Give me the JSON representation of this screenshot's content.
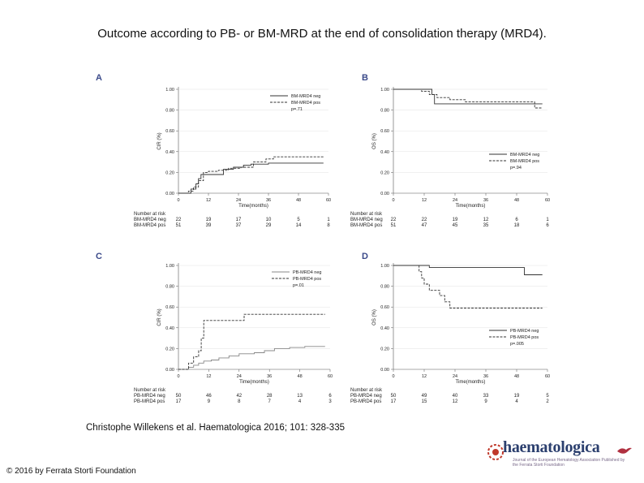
{
  "title": "Outcome according to PB- or BM-MRD at the end of consolidation therapy (MRD4).",
  "citation": "Christophe Willekens et al. Haematologica 2016; 101: 328-335",
  "copyright": "© 2016 by Ferrata Storti Foundation",
  "logo": {
    "word": "haematologica",
    "tagline": "Journal of the European Hematology Association Published by the Ferrata Storti Foundation"
  },
  "colors": {
    "solid": "#333333",
    "dashed": "#333333",
    "gray": "#888888",
    "letter": "#3b4a8a"
  },
  "chart_data": [
    {
      "panel": "A",
      "type": "line",
      "ylabel": "CIR (%)",
      "xlabel": "Time(months)",
      "xlim": [
        0,
        60
      ],
      "ylim": [
        0,
        1
      ],
      "xticks": [
        "0",
        "12",
        "24",
        "36",
        "48",
        "60"
      ],
      "yticks": [
        "0.00",
        "0.20",
        "0.40",
        "0.60",
        "0.80",
        "1.00"
      ],
      "legend": [
        "BM-MRD4 neg",
        "BM-MRD4 pos"
      ],
      "pvalue": "p=.71",
      "legend_position": "top-right",
      "series": [
        {
          "name": "BM-MRD4 neg",
          "style": "solid",
          "color": "#333333",
          "x": [
            0,
            5,
            7,
            8,
            9,
            12,
            18,
            22,
            26,
            29,
            36,
            48,
            58
          ],
          "y": [
            0,
            0.04,
            0.09,
            0.14,
            0.18,
            0.18,
            0.23,
            0.25,
            0.27,
            0.28,
            0.29,
            0.29,
            0.29
          ]
        },
        {
          "name": "BM-MRD4 pos",
          "style": "dashed",
          "color": "#333333",
          "x": [
            0,
            4,
            6,
            8,
            10,
            12,
            16,
            20,
            25,
            30,
            35,
            38,
            48,
            58
          ],
          "y": [
            0,
            0.02,
            0.06,
            0.12,
            0.2,
            0.21,
            0.22,
            0.24,
            0.25,
            0.3,
            0.33,
            0.35,
            0.35,
            0.35
          ]
        }
      ],
      "risk_table": {
        "header": "Number at risk",
        "rows": [
          {
            "label": "BM-MRD4 neg",
            "values": [
              "22",
              "19",
              "17",
              "10",
              "5",
              "1"
            ]
          },
          {
            "label": "BM-MRD4 pos",
            "values": [
              "51",
              "39",
              "37",
              "29",
              "14",
              "8"
            ]
          }
        ]
      }
    },
    {
      "panel": "B",
      "type": "line",
      "ylabel": "OS (%)",
      "xlabel": "Time(months)",
      "xlim": [
        0,
        60
      ],
      "ylim": [
        0,
        1
      ],
      "xticks": [
        "0",
        "12",
        "24",
        "36",
        "48",
        "60"
      ],
      "yticks": [
        "0.00",
        "0.20",
        "0.40",
        "0.60",
        "0.80",
        "1.00"
      ],
      "legend": [
        "BM-MRD4 neg",
        "BM-MRD4 pos"
      ],
      "pvalue": "p=.94",
      "legend_position": "bottom-right",
      "series": [
        {
          "name": "BM-MRD4 neg",
          "style": "solid",
          "color": "#333333",
          "x": [
            0,
            13,
            15,
            16,
            30,
            58
          ],
          "y": [
            1,
            1,
            0.95,
            0.86,
            0.86,
            0.86
          ]
        },
        {
          "name": "BM-MRD4 pos",
          "style": "dashed",
          "color": "#333333",
          "x": [
            0,
            11,
            14,
            17,
            22,
            28,
            55,
            58
          ],
          "y": [
            1,
            0.98,
            0.95,
            0.92,
            0.9,
            0.88,
            0.82,
            0.82
          ]
        }
      ],
      "risk_table": {
        "header": "Number at risk",
        "rows": [
          {
            "label": "BM-MRD4 neg",
            "values": [
              "22",
              "22",
              "19",
              "12",
              "6",
              "1"
            ]
          },
          {
            "label": "BM-MRD4 pos",
            "values": [
              "51",
              "47",
              "45",
              "35",
              "18",
              "6"
            ]
          }
        ]
      }
    },
    {
      "panel": "C",
      "type": "line",
      "ylabel": "CIR (%)",
      "xlabel": "Time(months)",
      "xlim": [
        0,
        60
      ],
      "ylim": [
        0,
        1
      ],
      "xticks": [
        "0",
        "12",
        "24",
        "36",
        "48",
        "60"
      ],
      "yticks": [
        "0.00",
        "0.20",
        "0.40",
        "0.60",
        "0.80",
        "1.00"
      ],
      "legend": [
        "PB-MRD4 neg",
        "PB-MRD4 pos"
      ],
      "pvalue": "p=.01",
      "legend_position": "top-right",
      "series": [
        {
          "name": "PB-MRD4 neg",
          "style": "solid",
          "color": "#888888",
          "x": [
            0,
            4,
            6,
            8,
            10,
            13,
            16,
            20,
            24,
            30,
            34,
            38,
            44,
            50,
            58
          ],
          "y": [
            0,
            0.02,
            0.04,
            0.06,
            0.08,
            0.09,
            0.11,
            0.13,
            0.15,
            0.16,
            0.18,
            0.2,
            0.21,
            0.22,
            0.22
          ]
        },
        {
          "name": "PB-MRD4 pos",
          "style": "dashed",
          "color": "#333333",
          "x": [
            0,
            4,
            6,
            8,
            9,
            10,
            24,
            26,
            58
          ],
          "y": [
            0,
            0.06,
            0.12,
            0.18,
            0.3,
            0.47,
            0.47,
            0.53,
            0.53
          ]
        }
      ],
      "risk_table": {
        "header": "Number at risk",
        "rows": [
          {
            "label": "PB-MRD4 neg",
            "values": [
              "50",
              "46",
              "42",
              "28",
              "13",
              "6"
            ]
          },
          {
            "label": "PB-MRD4 pos",
            "values": [
              "17",
              "9",
              "8",
              "7",
              "4",
              "3"
            ]
          }
        ]
      }
    },
    {
      "panel": "D",
      "type": "line",
      "ylabel": "OS (%)",
      "xlabel": "Time(months)",
      "xlim": [
        0,
        60
      ],
      "ylim": [
        0,
        1
      ],
      "xticks": [
        "0",
        "12",
        "24",
        "36",
        "48",
        "60"
      ],
      "yticks": [
        "0.00",
        "0.20",
        "0.40",
        "0.60",
        "0.80",
        "1.00"
      ],
      "legend": [
        "PB-MRD4 neg",
        "PB-MRD4 pos"
      ],
      "pvalue": "p=.005",
      "legend_position": "bottom-right",
      "series": [
        {
          "name": "PB-MRD4 neg",
          "style": "solid",
          "color": "#333333",
          "x": [
            0,
            13,
            14,
            50,
            51,
            58
          ],
          "y": [
            1,
            1,
            0.98,
            0.98,
            0.91,
            0.91
          ]
        },
        {
          "name": "PB-MRD4 pos",
          "style": "dashed",
          "color": "#333333",
          "x": [
            0,
            10,
            11,
            12,
            14,
            18,
            20,
            22,
            24,
            26,
            58
          ],
          "y": [
            1,
            0.94,
            0.88,
            0.82,
            0.76,
            0.71,
            0.65,
            0.59,
            0.59,
            0.59,
            0.59
          ]
        }
      ],
      "risk_table": {
        "header": "Number at risk",
        "rows": [
          {
            "label": "PB-MRD4 neg",
            "values": [
              "50",
              "49",
              "40",
              "33",
              "19",
              "5"
            ]
          },
          {
            "label": "PB-MRD4 pos",
            "values": [
              "17",
              "15",
              "12",
              "9",
              "4",
              "2"
            ]
          }
        ]
      }
    }
  ]
}
